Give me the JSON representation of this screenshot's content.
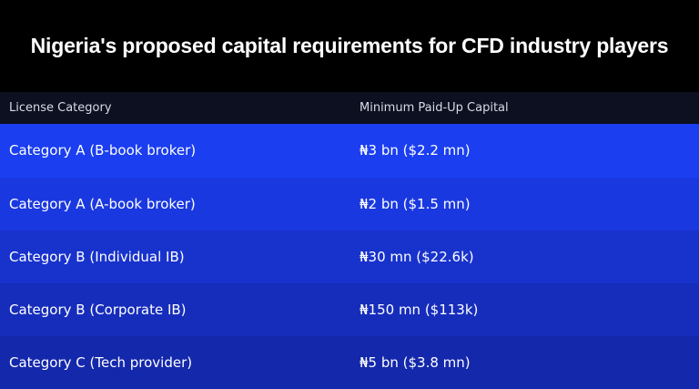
{
  "title": "Nigeria's proposed capital requirements for CFD industry players",
  "table": {
    "columns": [
      "License Category",
      "Minimum Paid-Up Capital"
    ],
    "rows": [
      {
        "category": "Category A (B-book broker)",
        "capital": "₦3 bn ($2.2 mn)"
      },
      {
        "category": "Category A (A-book broker)",
        "capital": "₦2 bn ($1.5 mn)"
      },
      {
        "category": "Category B (Individual IB)",
        "capital": "₦30 mn ($22.6k)"
      },
      {
        "category": "Category B (Corporate IB)",
        "capital": "₦150 mn ($113k)"
      },
      {
        "category": "Category C (Tech provider)",
        "capital": "₦5 bn ($3.8 mn)"
      }
    ]
  },
  "colors": {
    "background": "#000000",
    "header_row": "#0c1020",
    "row_blue_top": "#1a3ef0",
    "row_blue_bottom": "#1428ac"
  }
}
